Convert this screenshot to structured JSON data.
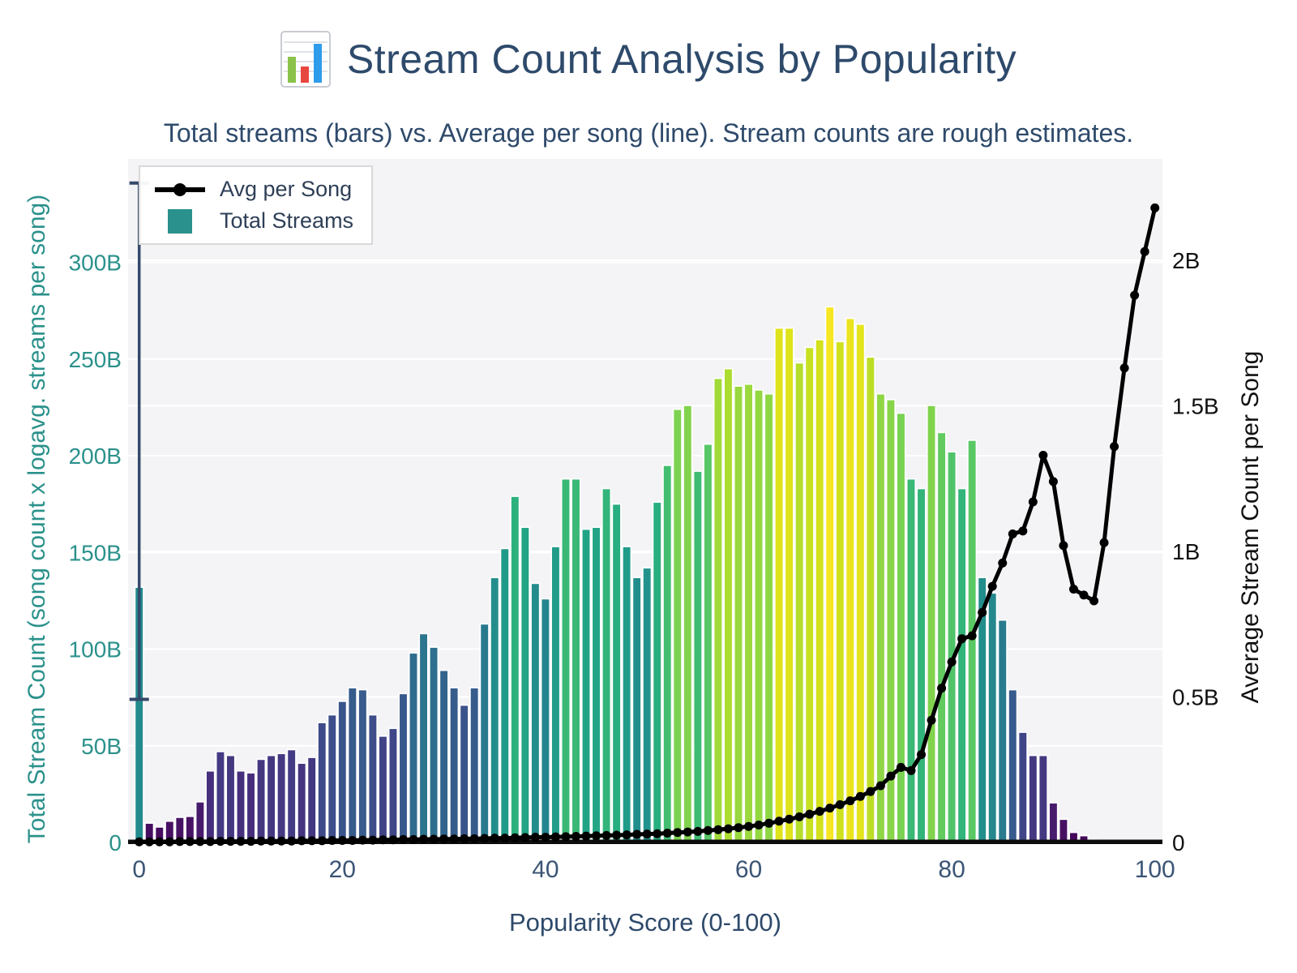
{
  "header": {
    "title": "Stream Count Analysis by Popularity",
    "icon": "bar-chart-icon"
  },
  "subtitle": "Total streams (bars) vs. Average per song (line). Stream counts are rough estimates.",
  "legend": {
    "items": [
      {
        "label": "Avg per Song",
        "marker": "line-dot",
        "color": "#000000"
      },
      {
        "label": "Total Streams",
        "marker": "square",
        "color": "#2a918c"
      }
    ]
  },
  "chart_data": {
    "type": "bar+line",
    "title": "Stream Count Analysis by Popularity",
    "x_label": "Popularity Score (0-100)",
    "x_ticks": [
      0,
      20,
      40,
      60,
      80,
      100
    ],
    "x_range": [
      0,
      100
    ],
    "popularity_scores": {
      "from": 0,
      "to": 100,
      "step": 1
    },
    "left_axis": {
      "label": "Total Stream Count (song count x logavg. streams per song)",
      "tick_labels": [
        "0",
        "50B",
        "100B",
        "150B",
        "200B",
        "250B",
        "300B"
      ],
      "tick_values": [
        0,
        50,
        100,
        150,
        200,
        250,
        300
      ],
      "units": "billions of streams",
      "color": "#2b918b"
    },
    "right_axis": {
      "label": "Average Stream Count per Song",
      "tick_labels": [
        "0",
        "0.5B",
        "1B",
        "1.5B",
        "2B"
      ],
      "tick_values": [
        0,
        0.5,
        1,
        1.5,
        2
      ],
      "units": "billions of streams",
      "color": "#111111"
    },
    "series": [
      {
        "name": "Total Streams",
        "type": "bar",
        "axis": "left",
        "colormap": "viridis",
        "values": [
          132,
          10,
          8,
          11,
          13,
          13.5,
          21,
          37,
          47,
          45,
          37,
          36,
          43,
          45,
          46,
          48,
          41,
          44,
          62,
          66,
          73,
          80,
          79,
          66,
          55,
          59,
          77,
          98,
          108,
          101,
          89,
          80,
          71,
          80,
          113,
          137,
          152,
          179,
          163,
          134,
          126,
          153,
          188,
          188,
          162,
          163,
          183,
          175,
          153,
          137,
          142,
          176,
          195,
          224,
          226,
          192,
          206,
          240,
          245,
          236,
          237,
          234,
          232,
          266,
          266,
          248,
          256,
          260,
          277,
          259,
          271,
          268,
          251,
          232,
          229,
          222,
          188,
          183,
          226,
          212,
          202,
          183,
          208,
          137,
          129,
          115,
          79,
          57,
          45,
          45,
          20.5,
          12,
          5.2,
          3.5,
          1.4,
          1.1,
          0.8,
          0.4,
          0.25,
          0.15,
          0.7
        ]
      },
      {
        "name": "Avg per Song",
        "type": "line",
        "axis": "right",
        "color": "#000000",
        "values": [
          0.002,
          0.002,
          0.002,
          0.002,
          0.003,
          0.003,
          0.003,
          0.003,
          0.004,
          0.004,
          0.004,
          0.004,
          0.005,
          0.005,
          0.005,
          0.005,
          0.006,
          0.006,
          0.006,
          0.007,
          0.007,
          0.007,
          0.008,
          0.008,
          0.009,
          0.009,
          0.01,
          0.01,
          0.011,
          0.011,
          0.012,
          0.012,
          0.013,
          0.013,
          0.014,
          0.015,
          0.015,
          0.016,
          0.017,
          0.018,
          0.018,
          0.019,
          0.02,
          0.021,
          0.022,
          0.023,
          0.024,
          0.025,
          0.026,
          0.028,
          0.029,
          0.03,
          0.032,
          0.034,
          0.036,
          0.038,
          0.041,
          0.044,
          0.047,
          0.051,
          0.055,
          0.06,
          0.066,
          0.073,
          0.08,
          0.088,
          0.097,
          0.107,
          0.118,
          0.13,
          0.143,
          0.158,
          0.175,
          0.195,
          0.228,
          0.258,
          0.247,
          0.302,
          0.42,
          0.53,
          0.62,
          0.7,
          0.71,
          0.79,
          0.88,
          0.96,
          1.06,
          1.07,
          1.17,
          1.33,
          1.24,
          1.02,
          0.87,
          0.85,
          0.83,
          1.03,
          1.36,
          1.63,
          1.88,
          2.03,
          2.18
        ]
      }
    ],
    "error_bar": {
      "x": 0,
      "low": 74,
      "high": 341,
      "color": "#35496a"
    },
    "color_scale_max": 280,
    "grid": true,
    "legend_position": "top-left",
    "plot_bg": "#f4f4f6",
    "gridline_color": "#ffffff",
    "baseline_color": "#0d0d0d",
    "x_tick_color": "#3b5575"
  }
}
